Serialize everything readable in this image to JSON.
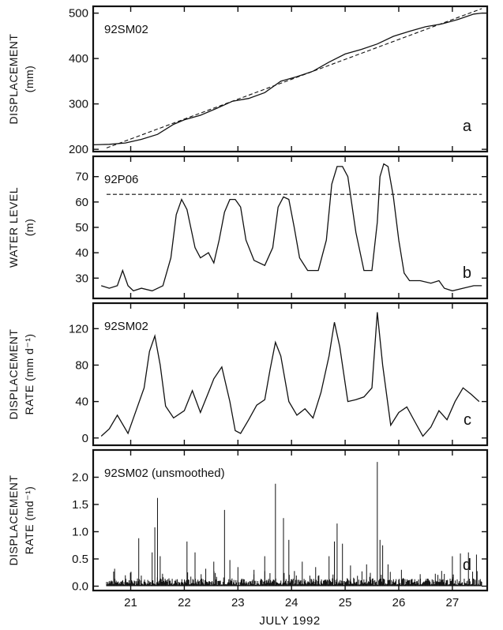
{
  "figure": {
    "xlabel": "JULY 1992",
    "x_tick_labels": [
      "21",
      "22",
      "23",
      "24",
      "25",
      "26",
      "27"
    ]
  },
  "chart_data": [
    {
      "type": "line",
      "panel_letter": "a",
      "station": "92SM02",
      "ylabel_lines": [
        "DISPLACEMENT",
        "(mm)"
      ],
      "xlim": [
        20.3,
        27.65
      ],
      "ylim": [
        195,
        515
      ],
      "y_ticks": [
        200,
        300,
        400,
        500
      ],
      "series": [
        {
          "style": "solid",
          "x": [
            20.3,
            20.6,
            20.9,
            21.2,
            21.5,
            21.8,
            22.0,
            22.3,
            22.6,
            22.9,
            23.2,
            23.5,
            23.8,
            24.1,
            24.4,
            24.7,
            25.0,
            25.3,
            25.6,
            25.9,
            26.2,
            26.5,
            26.8,
            27.1,
            27.4,
            27.55
          ],
          "y": [
            210,
            211,
            214,
            222,
            233,
            255,
            265,
            275,
            290,
            306,
            312,
            325,
            350,
            360,
            372,
            392,
            410,
            420,
            432,
            449,
            460,
            470,
            476,
            486,
            498,
            500
          ]
        },
        {
          "style": "dashed",
          "x": [
            20.55,
            27.55
          ],
          "y": [
            203,
            510
          ]
        }
      ]
    },
    {
      "type": "line",
      "panel_letter": "b",
      "station": "92P06",
      "ylabel_lines": [
        "WATER LEVEL",
        "(m)"
      ],
      "xlim": [
        20.3,
        27.65
      ],
      "ylim": [
        22,
        78
      ],
      "y_ticks": [
        30,
        40,
        50,
        60,
        70
      ],
      "reference_line": 63,
      "series": [
        {
          "style": "solid",
          "x": [
            20.45,
            20.6,
            20.75,
            20.85,
            20.95,
            21.05,
            21.2,
            21.4,
            21.6,
            21.75,
            21.85,
            21.95,
            22.05,
            22.2,
            22.3,
            22.45,
            22.55,
            22.65,
            22.75,
            22.85,
            22.95,
            23.05,
            23.15,
            23.3,
            23.5,
            23.65,
            23.75,
            23.85,
            23.95,
            24.05,
            24.15,
            24.3,
            24.5,
            24.65,
            24.75,
            24.85,
            24.95,
            25.05,
            25.2,
            25.35,
            25.5,
            25.6,
            25.65,
            25.72,
            25.8,
            25.9,
            26.0,
            26.1,
            26.2,
            26.4,
            26.6,
            26.75,
            26.85,
            27.0,
            27.2,
            27.4,
            27.55
          ],
          "y": [
            27,
            26,
            27,
            33,
            27,
            25,
            26,
            25,
            27,
            38,
            55,
            61,
            57,
            42,
            38,
            40,
            36,
            45,
            56,
            61,
            61,
            58,
            45,
            37,
            35,
            42,
            58,
            62,
            61,
            50,
            38,
            33,
            33,
            45,
            67,
            74,
            74,
            70,
            48,
            33,
            33,
            52,
            70,
            75,
            74,
            62,
            45,
            32,
            29,
            29,
            28,
            29,
            26,
            25,
            26,
            27,
            27
          ]
        }
      ]
    },
    {
      "type": "line",
      "panel_letter": "c",
      "station": "92SM02",
      "ylabel_lines": [
        "DISPLACEMENT",
        "RATE (mm d⁻¹)"
      ],
      "xlim": [
        20.3,
        27.65
      ],
      "ylim": [
        -8,
        148
      ],
      "y_ticks": [
        0,
        40,
        80,
        120
      ],
      "series": [
        {
          "style": "solid",
          "x": [
            20.45,
            20.6,
            20.75,
            20.95,
            21.1,
            21.25,
            21.35,
            21.45,
            21.55,
            21.65,
            21.8,
            22.0,
            22.15,
            22.3,
            22.45,
            22.55,
            22.7,
            22.85,
            22.95,
            23.05,
            23.2,
            23.35,
            23.5,
            23.6,
            23.7,
            23.8,
            23.95,
            24.1,
            24.25,
            24.4,
            24.55,
            24.7,
            24.8,
            24.9,
            25.05,
            25.2,
            25.35,
            25.5,
            25.6,
            25.7,
            25.85,
            26.0,
            26.15,
            26.3,
            26.45,
            26.6,
            26.75,
            26.9,
            27.05,
            27.2,
            27.35,
            27.5
          ],
          "y": [
            2,
            10,
            25,
            5,
            30,
            55,
            95,
            112,
            80,
            35,
            22,
            30,
            52,
            28,
            50,
            65,
            78,
            40,
            8,
            5,
            20,
            36,
            42,
            75,
            105,
            90,
            40,
            25,
            32,
            22,
            50,
            90,
            127,
            100,
            40,
            42,
            45,
            55,
            138,
            80,
            14,
            28,
            34,
            18,
            2,
            12,
            30,
            20,
            40,
            55,
            48,
            40
          ]
        }
      ]
    },
    {
      "type": "bar",
      "panel_letter": "d",
      "station": "92SM02 (unsmoothed)",
      "ylabel_lines": [
        "DISPLACEMENT",
        "RATE (md⁻¹)"
      ],
      "xlim": [
        20.3,
        27.65
      ],
      "ylim": [
        -0.08,
        2.5
      ],
      "y_ticks": [
        0.0,
        0.5,
        1.0,
        1.5,
        2.0
      ],
      "y_tick_labels": [
        "0.0",
        "0.5",
        "1.0",
        "1.5",
        "2.0"
      ],
      "x": [
        20.7,
        20.9,
        21.15,
        21.4,
        21.45,
        21.5,
        21.55,
        22.05,
        22.2,
        22.4,
        22.55,
        22.75,
        22.85,
        23.0,
        23.3,
        23.5,
        23.7,
        23.85,
        23.95,
        24.2,
        24.45,
        24.7,
        24.8,
        24.85,
        24.95,
        25.1,
        25.4,
        25.6,
        25.65,
        25.7,
        25.8,
        26.05,
        26.4,
        26.8,
        27.0,
        27.15,
        27.3,
        27.45
      ],
      "values": [
        0.32,
        0.2,
        0.88,
        0.62,
        1.08,
        1.62,
        0.55,
        0.82,
        0.62,
        0.32,
        0.45,
        1.4,
        0.48,
        0.35,
        0.3,
        0.55,
        1.88,
        1.25,
        0.85,
        0.45,
        0.35,
        0.55,
        0.82,
        1.15,
        0.78,
        0.38,
        0.4,
        2.28,
        0.85,
        0.75,
        0.4,
        0.3,
        0.22,
        0.28,
        0.55,
        0.6,
        0.62,
        0.58
      ]
    }
  ]
}
